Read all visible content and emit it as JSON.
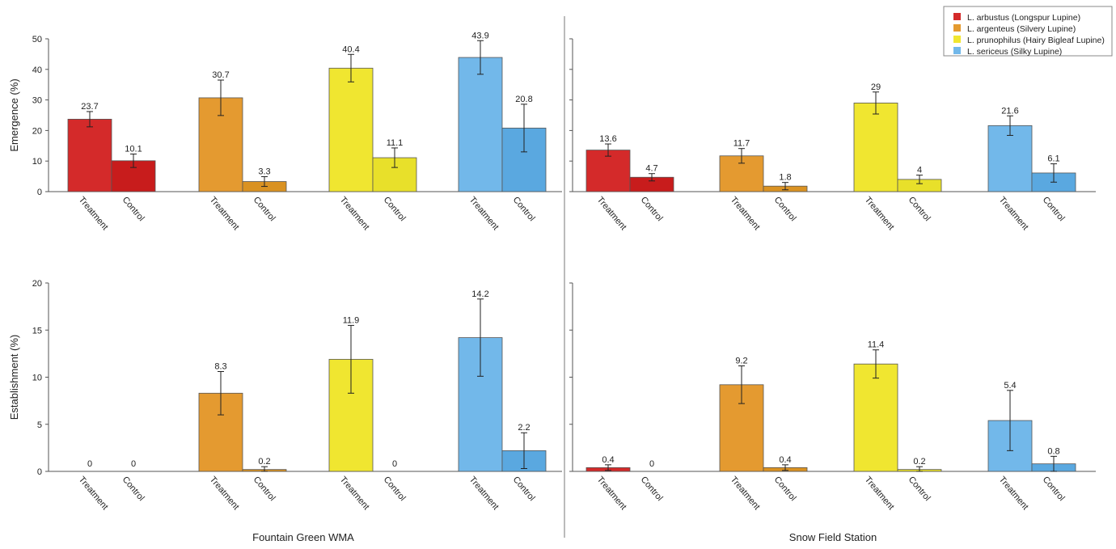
{
  "chart_data": {
    "type": "bar",
    "legend": {
      "placement": "top-right",
      "entries": [
        {
          "name": "L. arbustus (Longspur Lupine)",
          "color": "#d42a2a"
        },
        {
          "name": "L. argenteus (Silvery Lupine)",
          "color": "#e49a30"
        },
        {
          "name": "L. prunophilus (Hairy Bigleaf Lupine)",
          "color": "#f0e630"
        },
        {
          "name": "L. sericeus (Silky Lupine)",
          "color": "#72b8ea"
        }
      ]
    },
    "sites": [
      "Fountain Green WMA",
      "Snow Field Station"
    ],
    "categories": [
      "Treatment",
      "Control"
    ],
    "control_colors": [
      "#c81c1c",
      "#da9222",
      "#e8e02a",
      "#5aa8e0"
    ],
    "panels": [
      {
        "ylabel": "Emergence (%)",
        "ylim": [
          0,
          50
        ],
        "yticks": [
          0,
          10,
          20,
          30,
          40,
          50
        ],
        "values": [
          [
            [
              23.7,
              10.1
            ],
            [
              30.7,
              3.3
            ],
            [
              40.4,
              11.1
            ],
            [
              43.9,
              20.8
            ]
          ],
          [
            [
              13.6,
              4.7
            ],
            [
              11.7,
              1.8
            ],
            [
              29,
              4
            ],
            [
              21.6,
              6.1
            ]
          ]
        ],
        "errors": [
          [
            [
              2.5,
              2.2
            ],
            [
              5.8,
              1.6
            ],
            [
              4.5,
              3.2
            ],
            [
              5.5,
              7.8
            ]
          ],
          [
            [
              2.0,
              1.2
            ],
            [
              2.4,
              1.2
            ],
            [
              3.6,
              1.4
            ],
            [
              3.2,
              3.0
            ]
          ]
        ]
      },
      {
        "ylabel": "Establishment (%)",
        "ylim": [
          0,
          20
        ],
        "yticks": [
          0,
          5,
          10,
          15,
          20
        ],
        "values": [
          [
            [
              0,
              0
            ],
            [
              8.3,
              0.2
            ],
            [
              11.9,
              0
            ],
            [
              14.2,
              2.2
            ]
          ],
          [
            [
              0.4,
              0
            ],
            [
              9.2,
              0.4
            ],
            [
              11.4,
              0.2
            ],
            [
              5.4,
              0.8
            ]
          ]
        ],
        "errors": [
          [
            [
              0,
              0
            ],
            [
              2.3,
              0.3
            ],
            [
              3.6,
              0
            ],
            [
              4.1,
              1.9
            ]
          ],
          [
            [
              0.3,
              0
            ],
            [
              2.0,
              0.3
            ],
            [
              1.5,
              0.3
            ],
            [
              3.2,
              0.8
            ]
          ]
        ]
      }
    ]
  }
}
